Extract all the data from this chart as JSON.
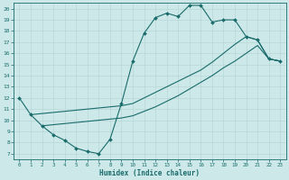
{
  "xlabel": "Humidex (Indice chaleur)",
  "background_color": "#cce8e8",
  "line_color": "#1a6b6b",
  "grid_color": "#b8d8d8",
  "xlim": [
    -0.5,
    23.5
  ],
  "ylim": [
    6.5,
    20.5
  ],
  "xticks": [
    0,
    1,
    2,
    3,
    4,
    5,
    6,
    7,
    8,
    9,
    10,
    11,
    12,
    13,
    14,
    15,
    16,
    17,
    18,
    19,
    20,
    21,
    22,
    23
  ],
  "yticks": [
    7,
    8,
    9,
    10,
    11,
    12,
    13,
    14,
    15,
    16,
    17,
    18,
    19,
    20
  ],
  "curve1_x": [
    0,
    1,
    2,
    3,
    4,
    5,
    6,
    7,
    8,
    9,
    10,
    11,
    12,
    13,
    14,
    15,
    16,
    17,
    18,
    19,
    20,
    21,
    22,
    23
  ],
  "curve1_y": [
    12,
    10.5,
    9.5,
    8.7,
    8.2,
    7.5,
    7.2,
    7.0,
    8.3,
    11.5,
    15.3,
    17.8,
    19.2,
    19.6,
    19.3,
    20.3,
    20.3,
    18.8,
    19.0,
    19.0,
    17.5,
    17.2,
    15.5,
    15.3
  ],
  "curve2_x": [
    1,
    2,
    3,
    4,
    5,
    6,
    7,
    8,
    9,
    10,
    11,
    12,
    13,
    14,
    15,
    16,
    17,
    18,
    19,
    20,
    21,
    22,
    23
  ],
  "curve2_y": [
    10.5,
    10.6,
    10.7,
    10.8,
    10.9,
    11.0,
    11.1,
    11.2,
    11.3,
    11.5,
    12.0,
    12.5,
    13.0,
    13.5,
    14.0,
    14.5,
    15.2,
    16.0,
    16.8,
    17.5,
    17.2,
    15.5,
    15.3
  ],
  "curve3_x": [
    2,
    3,
    4,
    5,
    6,
    7,
    8,
    9,
    10,
    11,
    12,
    13,
    14,
    15,
    16,
    17,
    18,
    19,
    20,
    21,
    22,
    23
  ],
  "curve3_y": [
    9.5,
    9.6,
    9.7,
    9.8,
    9.9,
    10.0,
    10.1,
    10.2,
    10.4,
    10.8,
    11.2,
    11.7,
    12.2,
    12.8,
    13.4,
    14.0,
    14.7,
    15.3,
    16.0,
    16.7,
    15.5,
    15.3
  ]
}
